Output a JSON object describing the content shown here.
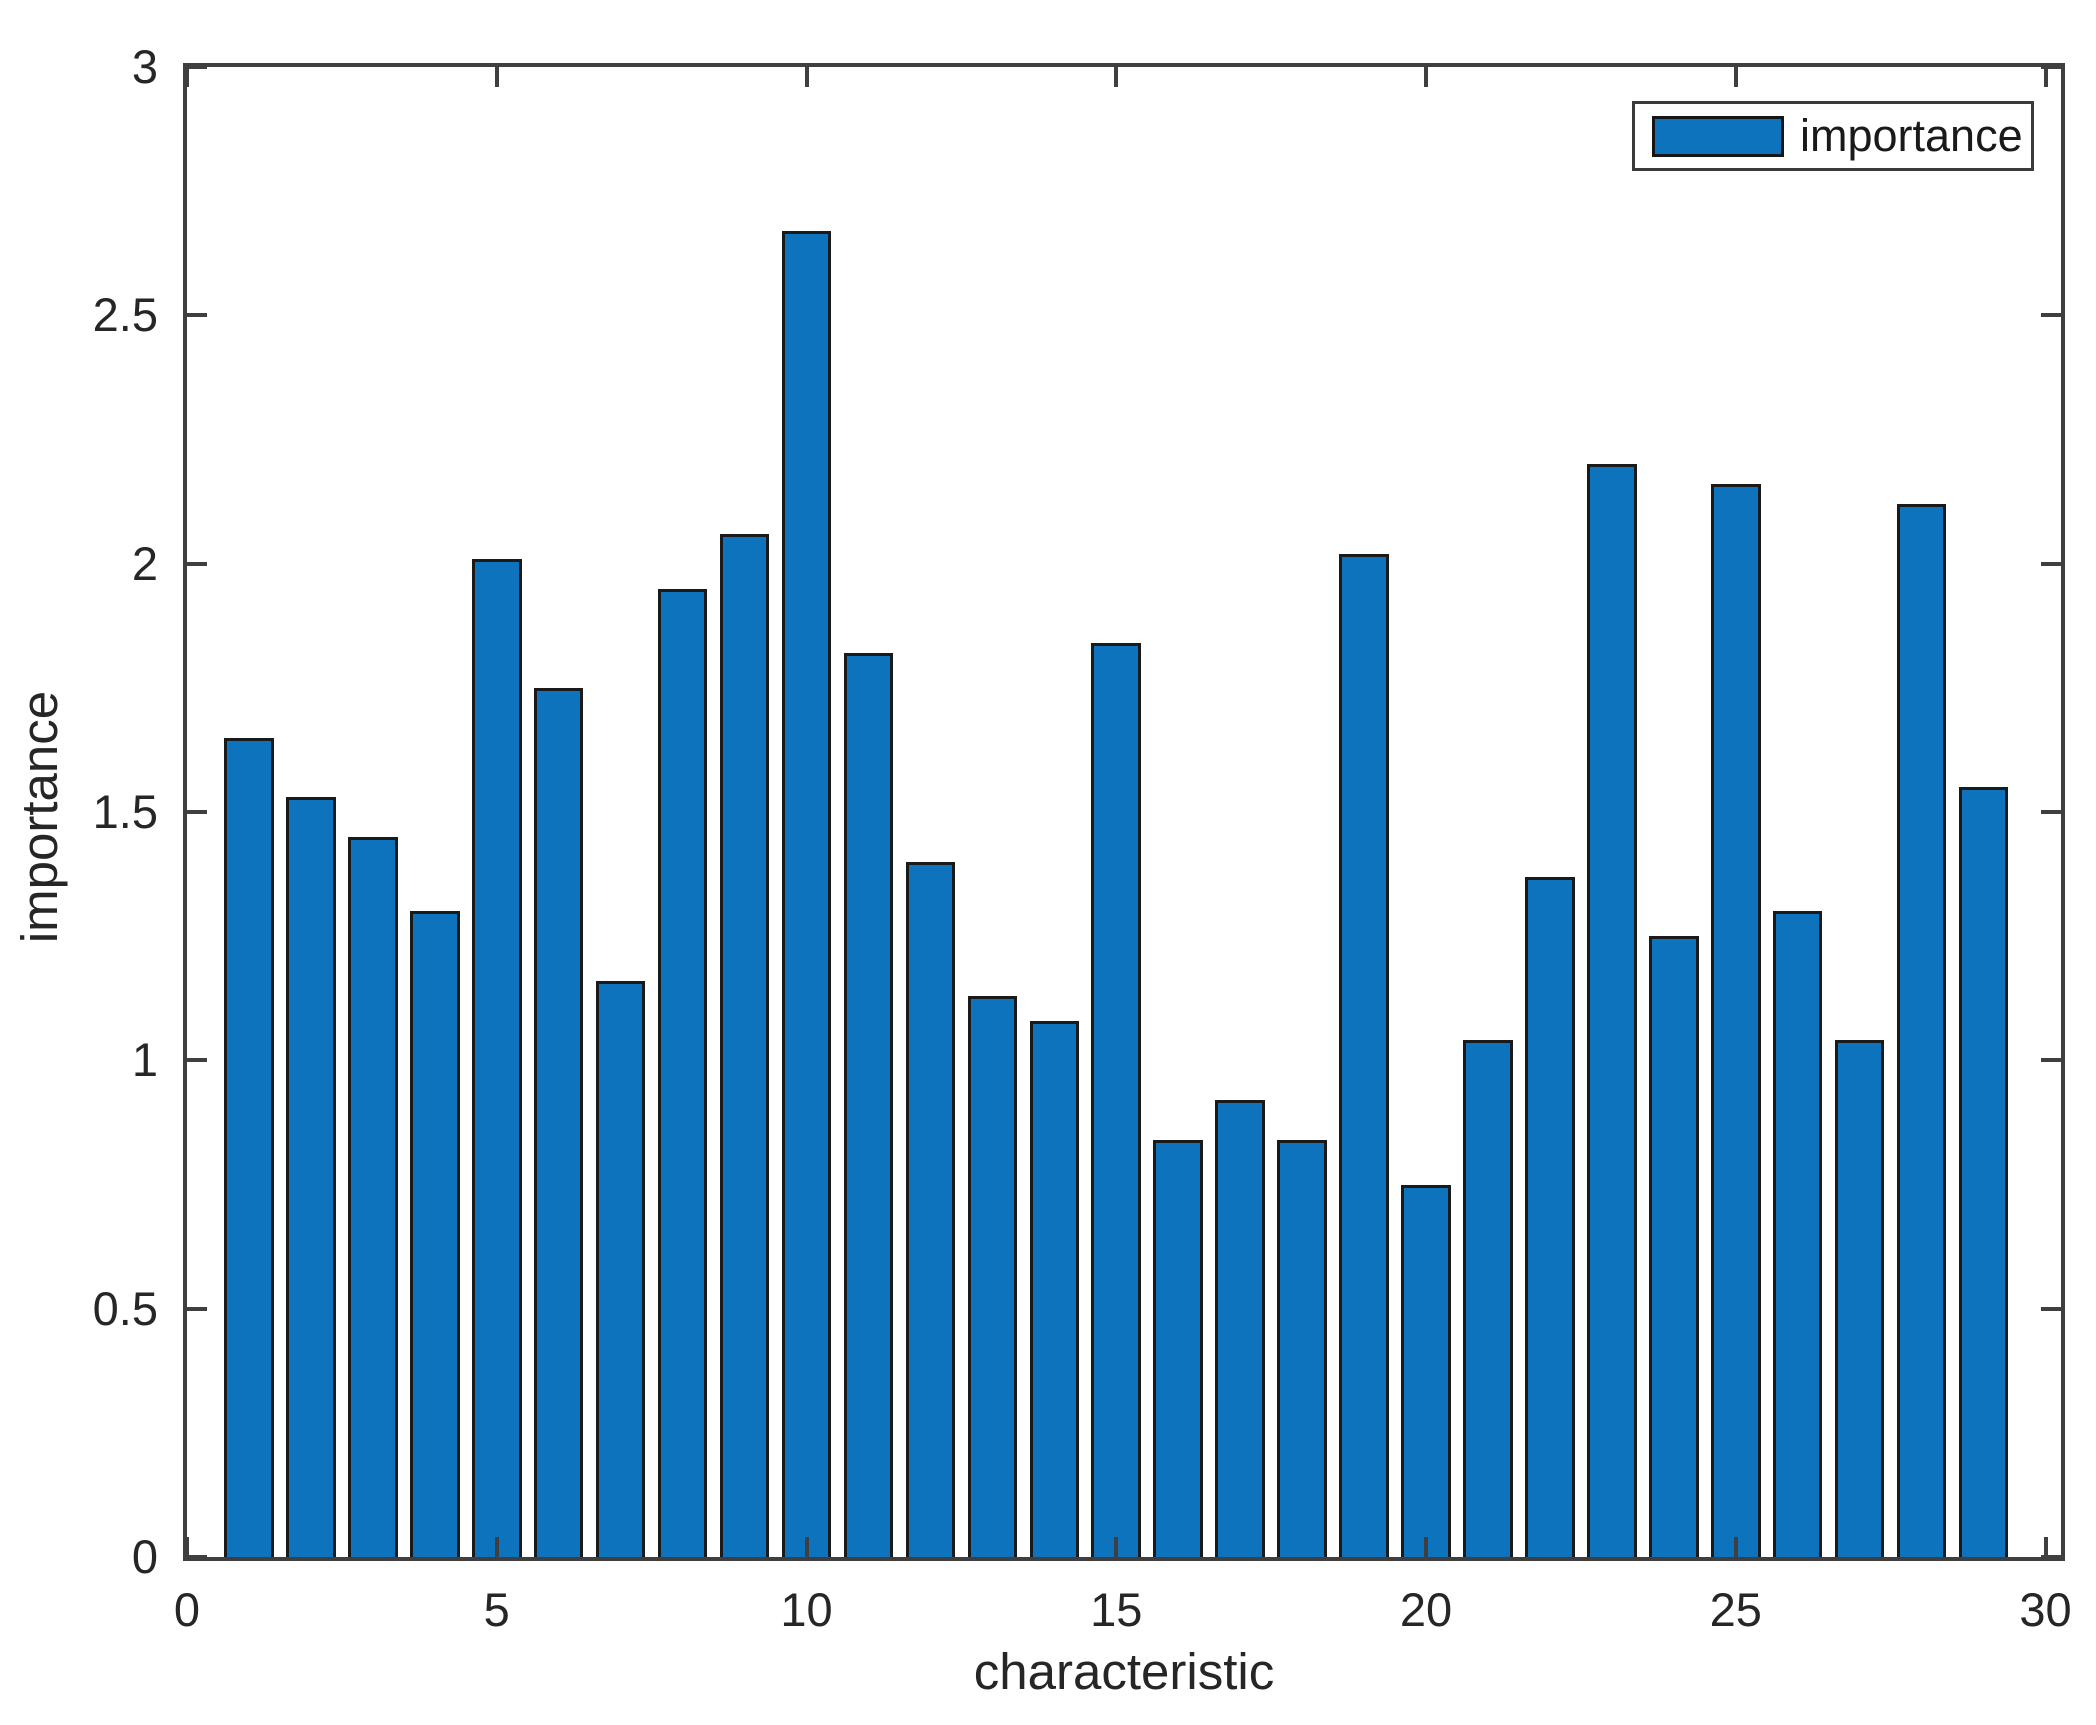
{
  "figure": {
    "background": "#ffffff"
  },
  "chart_data": {
    "type": "bar",
    "title": "",
    "xlabel": "characteristic",
    "ylabel": "importance",
    "legend": {
      "position": "top-right",
      "entries": [
        {
          "label": "importance",
          "swatch_color": "#0d73bc"
        }
      ]
    },
    "x": [
      1,
      2,
      3,
      4,
      5,
      6,
      7,
      8,
      9,
      10,
      11,
      12,
      13,
      14,
      15,
      16,
      17,
      18,
      19,
      20,
      21,
      22,
      23,
      24,
      25,
      26,
      27,
      28,
      29
    ],
    "series": [
      {
        "name": "importance",
        "values": [
          1.65,
          1.53,
          1.45,
          1.3,
          2.01,
          1.75,
          1.16,
          1.95,
          2.06,
          2.67,
          1.82,
          1.4,
          1.13,
          1.08,
          1.84,
          0.84,
          0.92,
          0.84,
          2.02,
          0.75,
          1.04,
          1.37,
          2.2,
          1.25,
          2.16,
          1.3,
          1.04,
          2.12,
          1.55
        ]
      }
    ],
    "xlim": [
      0,
      30.25
    ],
    "ylim": [
      0,
      3
    ],
    "xticks": [
      0,
      5,
      10,
      15,
      20,
      25,
      30
    ],
    "yticks": [
      0,
      0.5,
      1,
      1.5,
      2,
      2.5,
      3
    ],
    "bar_width_fraction": 0.8,
    "grid": false,
    "colors": {
      "bar_fill": "#0d73bc",
      "bar_edge": "#1a1a1a",
      "axis": "#3f3f3f",
      "text": "#262626"
    }
  }
}
